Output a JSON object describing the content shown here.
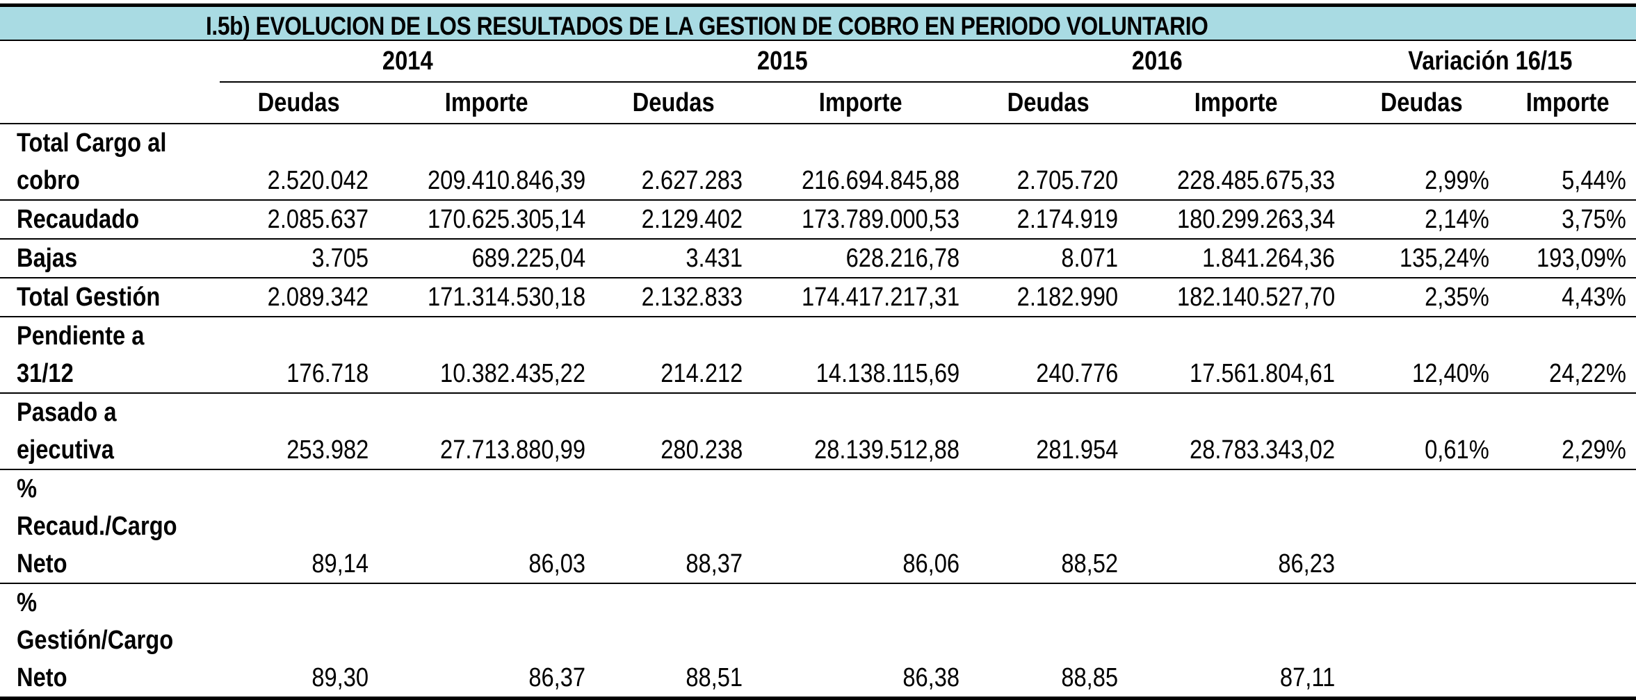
{
  "title": "I.5b) EVOLUCION DE LOS RESULTADOS DE  LA GESTION DE COBRO EN PERIODO VOLUNTARIO",
  "years": [
    "2014",
    "2015",
    "2016",
    "Variación 16/15"
  ],
  "subheaders": [
    "Deudas",
    "Importe",
    "Deudas",
    "Importe",
    "Deudas",
    "Importe",
    "Deudas",
    "Importe"
  ],
  "rows": [
    {
      "label": [
        "Total Cargo al",
        "cobro"
      ],
      "values": [
        "2.520.042",
        "209.410.846,39",
        "2.627.283",
        "216.694.845,88",
        "2.705.720",
        "228.485.675,33",
        "2,99%",
        "5,44%"
      ]
    },
    {
      "label": [
        "Recaudado"
      ],
      "values": [
        "2.085.637",
        "170.625.305,14",
        "2.129.402",
        "173.789.000,53",
        "2.174.919",
        "180.299.263,34",
        "2,14%",
        "3,75%"
      ]
    },
    {
      "label": [
        "Bajas"
      ],
      "values": [
        "3.705",
        "689.225,04",
        "3.431",
        "628.216,78",
        "8.071",
        "1.841.264,36",
        "135,24%",
        "193,09%"
      ]
    },
    {
      "label": [
        "Total Gestión"
      ],
      "values": [
        "2.089.342",
        "171.314.530,18",
        "2.132.833",
        "174.417.217,31",
        "2.182.990",
        "182.140.527,70",
        "2,35%",
        "4,43%"
      ]
    },
    {
      "label": [
        "Pendiente a",
        "31/12"
      ],
      "values": [
        "176.718",
        "10.382.435,22",
        "214.212",
        "14.138.115,69",
        "240.776",
        "17.561.804,61",
        "12,40%",
        "24,22%"
      ]
    },
    {
      "label": [
        "Pasado a",
        "ejecutiva"
      ],
      "values": [
        "253.982",
        "27.713.880,99",
        "280.238",
        "28.139.512,88",
        "281.954",
        "28.783.343,02",
        "0,61%",
        "2,29%"
      ]
    },
    {
      "label": [
        "%",
        "Recaud./Cargo",
        "Neto"
      ],
      "values": [
        "89,14",
        "86,03",
        "88,37",
        "86,06",
        "88,52",
        "86,23",
        "",
        ""
      ]
    },
    {
      "label": [
        "%",
        "Gestión/Cargo",
        "Neto"
      ],
      "values": [
        "89,30",
        "86,37",
        "88,51",
        "86,38",
        "88,85",
        "87,11",
        "",
        ""
      ]
    }
  ]
}
